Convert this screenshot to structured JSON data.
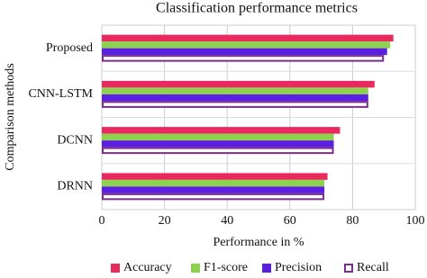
{
  "chart_data": {
    "type": "hbar",
    "title": "Classification performance metrics",
    "x_label": "Performance in %",
    "y_label": "Comparison methods",
    "categories": [
      "Proposed",
      "CNN-LSTM",
      "DCNN",
      "DRNN"
    ],
    "series": [
      {
        "name": "Accuracy",
        "color": "#ea2a5f",
        "values": [
          93,
          87,
          76,
          72
        ]
      },
      {
        "name": "F1-score",
        "color": "#8ed14f",
        "values": [
          92,
          85,
          74,
          71
        ]
      },
      {
        "name": "Precision",
        "color": "#5a1fe0",
        "values": [
          91,
          85,
          74,
          71
        ]
      },
      {
        "name": "Recall",
        "color": "#7b2d8e",
        "values": [
          90,
          85,
          74,
          71
        ],
        "hollow": true
      }
    ],
    "xlim": [
      0,
      100
    ],
    "xticks": [
      0,
      20,
      40,
      60,
      80,
      100
    ],
    "grid": true
  }
}
